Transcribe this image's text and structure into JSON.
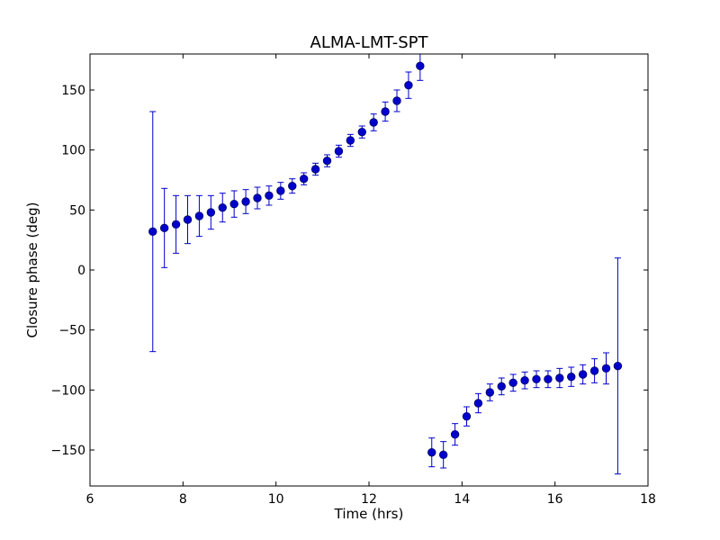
{
  "chart_data": {
    "type": "scatter",
    "title": "ALMA-LMT-SPT",
    "xlabel": "Time (hrs)",
    "ylabel": "Closure phase (deg)",
    "xlim": [
      6,
      18
    ],
    "ylim": [
      -180,
      180
    ],
    "xticks": [
      6,
      8,
      10,
      12,
      14,
      16,
      18
    ],
    "yticks": [
      150,
      100,
      50,
      0,
      -50,
      -100,
      -150
    ],
    "ytick_labels": [
      "150",
      "100",
      "50",
      "0",
      "−50",
      "−100",
      "−150"
    ],
    "grid": false,
    "legend": "none",
    "marker_color": "#0000cc",
    "marker_edge": "#000066",
    "series": [
      {
        "error_bars": true,
        "points": [
          {
            "x": 7.35,
            "y": 32,
            "err": 100
          },
          {
            "x": 7.6,
            "y": 35,
            "err": 33
          },
          {
            "x": 7.85,
            "y": 38,
            "err": 24
          },
          {
            "x": 8.1,
            "y": 42,
            "err": 20
          },
          {
            "x": 8.35,
            "y": 45,
            "err": 17
          },
          {
            "x": 8.6,
            "y": 48,
            "err": 14
          },
          {
            "x": 8.85,
            "y": 52,
            "err": 12
          },
          {
            "x": 9.1,
            "y": 55,
            "err": 11
          },
          {
            "x": 9.35,
            "y": 57,
            "err": 10
          },
          {
            "x": 9.6,
            "y": 60,
            "err": 9
          },
          {
            "x": 9.85,
            "y": 62,
            "err": 8
          },
          {
            "x": 10.1,
            "y": 66,
            "err": 7
          },
          {
            "x": 10.35,
            "y": 70,
            "err": 6
          },
          {
            "x": 10.6,
            "y": 76,
            "err": 5
          },
          {
            "x": 10.85,
            "y": 84,
            "err": 5
          },
          {
            "x": 11.1,
            "y": 91,
            "err": 5
          },
          {
            "x": 11.35,
            "y": 99,
            "err": 5
          },
          {
            "x": 11.6,
            "y": 108,
            "err": 5
          },
          {
            "x": 11.85,
            "y": 115,
            "err": 5
          },
          {
            "x": 12.1,
            "y": 123,
            "err": 7
          },
          {
            "x": 12.35,
            "y": 132,
            "err": 8
          },
          {
            "x": 12.6,
            "y": 141,
            "err": 9
          },
          {
            "x": 12.85,
            "y": 154,
            "err": 11
          },
          {
            "x": 13.1,
            "y": 170,
            "err": 12
          },
          {
            "x": 13.35,
            "y": -152,
            "err": 12
          },
          {
            "x": 13.6,
            "y": -154,
            "err": 11
          },
          {
            "x": 13.85,
            "y": -137,
            "err": 9
          },
          {
            "x": 14.1,
            "y": -122,
            "err": 8
          },
          {
            "x": 14.35,
            "y": -111,
            "err": 8
          },
          {
            "x": 14.6,
            "y": -102,
            "err": 7
          },
          {
            "x": 14.85,
            "y": -97,
            "err": 7
          },
          {
            "x": 15.1,
            "y": -94,
            "err": 7
          },
          {
            "x": 15.35,
            "y": -92,
            "err": 7
          },
          {
            "x": 15.6,
            "y": -91,
            "err": 7
          },
          {
            "x": 15.85,
            "y": -91,
            "err": 7
          },
          {
            "x": 16.1,
            "y": -90,
            "err": 8
          },
          {
            "x": 16.35,
            "y": -89,
            "err": 8
          },
          {
            "x": 16.6,
            "y": -87,
            "err": 8
          },
          {
            "x": 16.85,
            "y": -84,
            "err": 10
          },
          {
            "x": 17.1,
            "y": -82,
            "err": 13
          },
          {
            "x": 17.35,
            "y": -80,
            "err": 90
          }
        ]
      }
    ]
  }
}
